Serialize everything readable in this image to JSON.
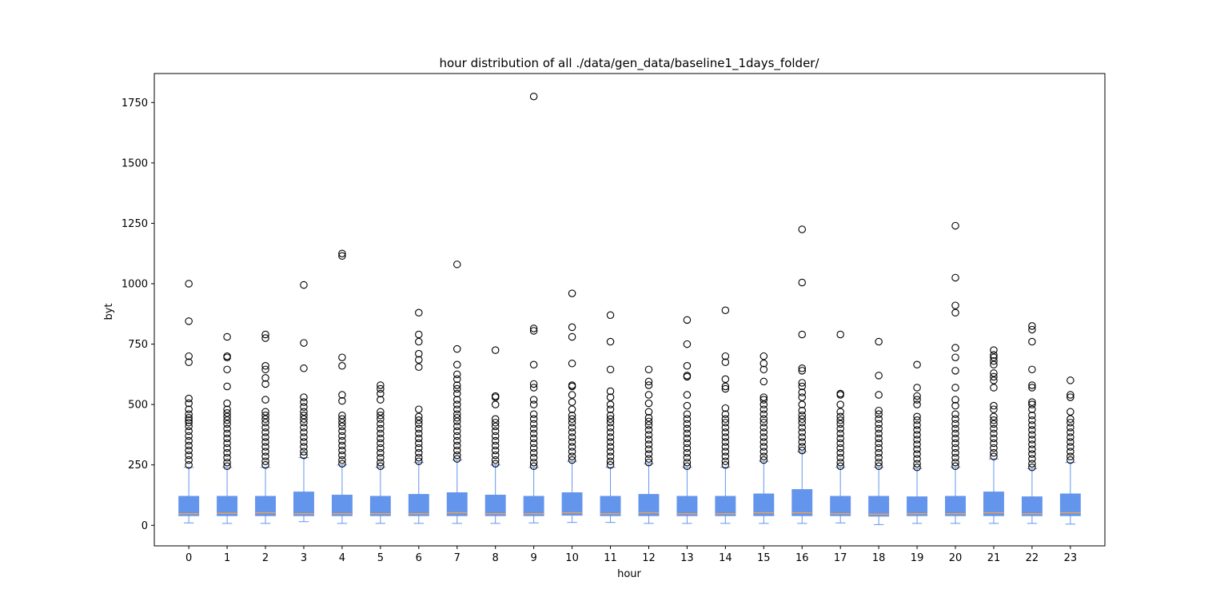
{
  "chart_data": {
    "type": "box",
    "title": "hour distribution of all ./data/gen_data/baseline1_1days_folder/",
    "xlabel": "hour",
    "ylabel": "byt",
    "ylim": [
      -85,
      1870
    ],
    "yticks": [
      0,
      250,
      500,
      750,
      1000,
      1250,
      1500,
      1750
    ],
    "categories": [
      "0",
      "1",
      "2",
      "3",
      "4",
      "5",
      "6",
      "7",
      "8",
      "9",
      "10",
      "11",
      "12",
      "13",
      "14",
      "15",
      "16",
      "17",
      "18",
      "19",
      "20",
      "21",
      "22",
      "23"
    ],
    "colors": {
      "box_fill": "#6495ed",
      "box_edge": "#6495ed",
      "whisker": "#6495ed",
      "median": "#f0a04b",
      "flier_edge": "#000000"
    },
    "grid": false,
    "boxes": [
      {
        "whislo": 10,
        "q1": 40,
        "med": 48,
        "q3": 120,
        "whishi": 240,
        "fliers": [
          250,
          270,
          290,
          310,
          330,
          350,
          370,
          390,
          410,
          425,
          435,
          445,
          460,
          480,
          505,
          525,
          675,
          700,
          845,
          1000
        ]
      },
      {
        "whislo": 8,
        "q1": 40,
        "med": 50,
        "q3": 120,
        "whishi": 240,
        "fliers": [
          245,
          260,
          280,
          300,
          320,
          340,
          360,
          380,
          400,
          420,
          435,
          450,
          465,
          480,
          505,
          575,
          645,
          695,
          700,
          780
        ]
      },
      {
        "whislo": 8,
        "q1": 40,
        "med": 52,
        "q3": 120,
        "whishi": 240,
        "fliers": [
          250,
          265,
          285,
          305,
          325,
          345,
          365,
          385,
          405,
          425,
          440,
          455,
          470,
          520,
          585,
          610,
          645,
          660,
          775,
          790
        ]
      },
      {
        "whislo": 15,
        "q1": 40,
        "med": 48,
        "q3": 138,
        "whishi": 280,
        "fliers": [
          290,
          305,
          325,
          345,
          365,
          385,
          405,
          425,
          440,
          455,
          470,
          490,
          510,
          530,
          650,
          755,
          995
        ]
      },
      {
        "whislo": 8,
        "q1": 40,
        "med": 48,
        "q3": 125,
        "whishi": 250,
        "fliers": [
          255,
          270,
          290,
          310,
          330,
          350,
          370,
          390,
          410,
          425,
          440,
          455,
          515,
          540,
          660,
          695,
          1115,
          1125
        ]
      },
      {
        "whislo": 8,
        "q1": 40,
        "med": 48,
        "q3": 120,
        "whishi": 240,
        "fliers": [
          245,
          260,
          280,
          300,
          320,
          340,
          360,
          380,
          400,
          420,
          440,
          455,
          470,
          520,
          545,
          565,
          580
        ]
      },
      {
        "whislo": 8,
        "q1": 40,
        "med": 48,
        "q3": 128,
        "whishi": 260,
        "fliers": [
          265,
          280,
          300,
          320,
          340,
          360,
          380,
          400,
          420,
          435,
          450,
          480,
          655,
          685,
          710,
          760,
          790,
          880
        ]
      },
      {
        "whislo": 8,
        "q1": 40,
        "med": 52,
        "q3": 135,
        "whishi": 270,
        "fliers": [
          275,
          290,
          310,
          330,
          350,
          370,
          390,
          410,
          430,
          445,
          460,
          480,
          500,
          520,
          545,
          565,
          580,
          605,
          625,
          665,
          730,
          1080
        ]
      },
      {
        "whislo": 8,
        "q1": 40,
        "med": 48,
        "q3": 125,
        "whishi": 250,
        "fliers": [
          255,
          270,
          290,
          310,
          330,
          350,
          370,
          390,
          410,
          425,
          440,
          500,
          530,
          535,
          725
        ]
      },
      {
        "whislo": 10,
        "q1": 40,
        "med": 48,
        "q3": 120,
        "whishi": 240,
        "fliers": [
          245,
          260,
          280,
          300,
          320,
          340,
          360,
          380,
          400,
          420,
          440,
          460,
          500,
          520,
          570,
          585,
          665,
          805,
          815,
          1775
        ]
      },
      {
        "whislo": 12,
        "q1": 42,
        "med": 52,
        "q3": 135,
        "whishi": 265,
        "fliers": [
          270,
          285,
          305,
          325,
          345,
          365,
          385,
          405,
          425,
          440,
          455,
          480,
          510,
          540,
          575,
          580,
          670,
          780,
          820,
          960
        ]
      },
      {
        "whislo": 12,
        "q1": 40,
        "med": 48,
        "q3": 120,
        "whishi": 240,
        "fliers": [
          250,
          265,
          285,
          305,
          325,
          345,
          365,
          385,
          405,
          425,
          440,
          455,
          480,
          500,
          530,
          555,
          645,
          760,
          870
        ]
      },
      {
        "whislo": 8,
        "q1": 40,
        "med": 52,
        "q3": 128,
        "whishi": 255,
        "fliers": [
          260,
          275,
          295,
          315,
          335,
          355,
          375,
          395,
          415,
          430,
          445,
          470,
          505,
          540,
          580,
          595,
          645
        ]
      },
      {
        "whislo": 8,
        "q1": 40,
        "med": 48,
        "q3": 120,
        "whishi": 240,
        "fliers": [
          245,
          260,
          280,
          300,
          320,
          340,
          360,
          380,
          400,
          420,
          440,
          460,
          495,
          540,
          615,
          620,
          660,
          750,
          850
        ]
      },
      {
        "whislo": 8,
        "q1": 40,
        "med": 48,
        "q3": 120,
        "whishi": 240,
        "fliers": [
          250,
          265,
          285,
          305,
          325,
          345,
          365,
          385,
          405,
          425,
          440,
          460,
          485,
          565,
          575,
          605,
          675,
          700,
          890
        ]
      },
      {
        "whislo": 8,
        "q1": 40,
        "med": 52,
        "q3": 130,
        "whishi": 265,
        "fliers": [
          270,
          285,
          305,
          325,
          345,
          365,
          385,
          405,
          425,
          440,
          460,
          480,
          500,
          520,
          530,
          595,
          645,
          670,
          700
        ]
      },
      {
        "whislo": 8,
        "q1": 40,
        "med": 52,
        "q3": 148,
        "whishi": 305,
        "fliers": [
          310,
          325,
          345,
          365,
          385,
          405,
          425,
          440,
          455,
          475,
          500,
          530,
          550,
          575,
          590,
          640,
          650,
          790,
          1005,
          1225
        ]
      },
      {
        "whislo": 10,
        "q1": 40,
        "med": 48,
        "q3": 120,
        "whishi": 240,
        "fliers": [
          245,
          260,
          280,
          300,
          320,
          340,
          360,
          380,
          400,
          420,
          435,
          450,
          470,
          500,
          540,
          545,
          790
        ]
      },
      {
        "whislo": 3,
        "q1": 38,
        "med": 46,
        "q3": 120,
        "whishi": 240,
        "fliers": [
          245,
          260,
          280,
          300,
          320,
          340,
          360,
          380,
          400,
          420,
          440,
          460,
          475,
          540,
          620,
          760
        ]
      },
      {
        "whislo": 8,
        "q1": 40,
        "med": 48,
        "q3": 118,
        "whishi": 235,
        "fliers": [
          240,
          255,
          275,
          295,
          315,
          335,
          355,
          375,
          395,
          415,
          435,
          450,
          500,
          520,
          535,
          570,
          665
        ]
      },
      {
        "whislo": 8,
        "q1": 40,
        "med": 48,
        "q3": 120,
        "whishi": 240,
        "fliers": [
          245,
          260,
          280,
          300,
          320,
          340,
          360,
          380,
          400,
          420,
          440,
          460,
          495,
          520,
          570,
          640,
          695,
          735,
          880,
          910,
          1025,
          1240
        ]
      },
      {
        "whislo": 8,
        "q1": 40,
        "med": 52,
        "q3": 138,
        "whishi": 275,
        "fliers": [
          285,
          300,
          320,
          340,
          360,
          380,
          400,
          420,
          435,
          450,
          480,
          495,
          570,
          600,
          615,
          630,
          665,
          680,
          695,
          705,
          725
        ]
      },
      {
        "whislo": 8,
        "q1": 40,
        "med": 48,
        "q3": 118,
        "whishi": 235,
        "fliers": [
          240,
          255,
          275,
          295,
          315,
          335,
          355,
          375,
          395,
          415,
          435,
          455,
          480,
          500,
          510,
          570,
          580,
          645,
          760,
          810,
          825
        ]
      },
      {
        "whislo": 5,
        "q1": 40,
        "med": 52,
        "q3": 130,
        "whishi": 260,
        "fliers": [
          270,
          285,
          305,
          325,
          345,
          365,
          385,
          405,
          425,
          440,
          470,
          530,
          540,
          600
        ]
      }
    ]
  }
}
